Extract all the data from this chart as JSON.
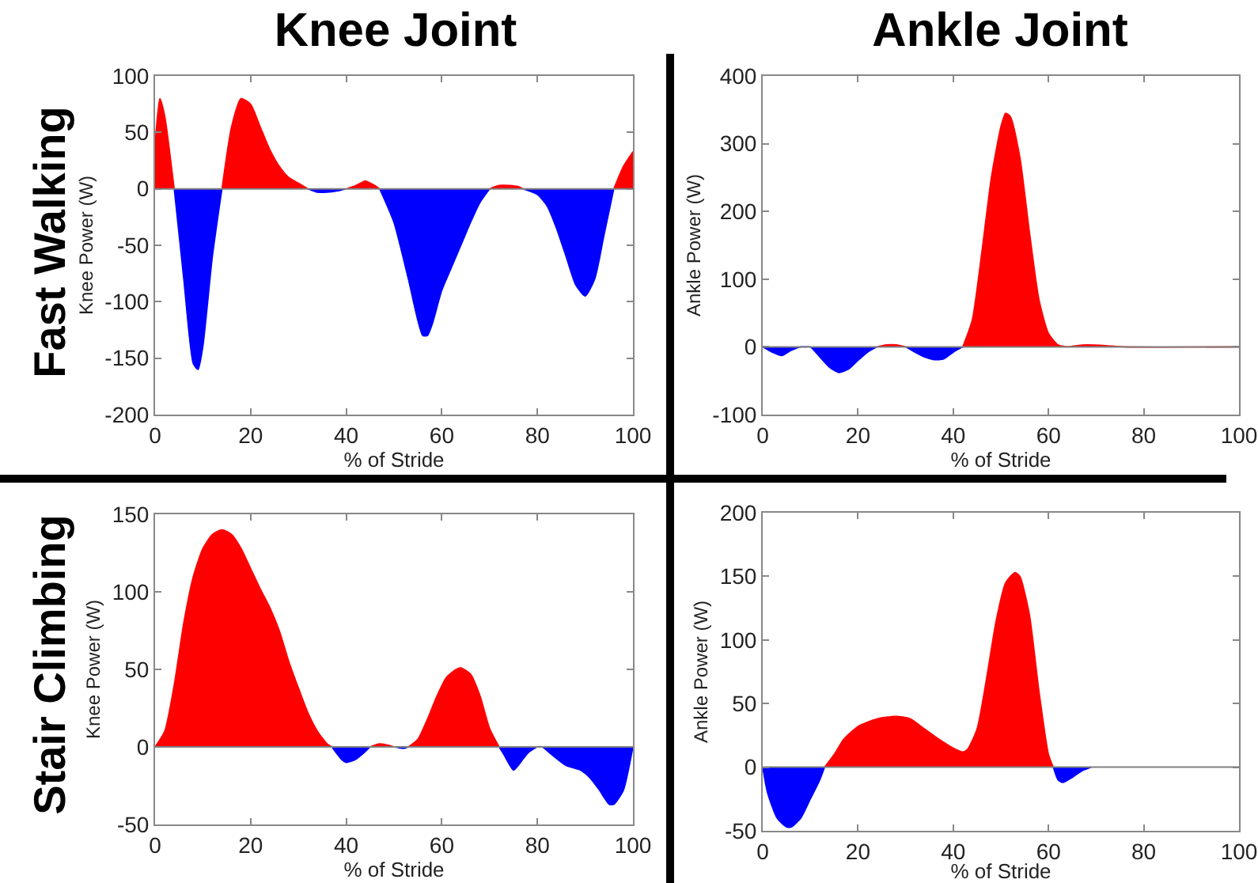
{
  "chart_data": [
    {
      "type": "area",
      "title": "Knee Joint",
      "annotations": [
        "Fast Walking"
      ],
      "xlabel": "% of Stride",
      "ylabel": "Knee Power (W)",
      "xlim": [
        0,
        100
      ],
      "xticks": [
        0,
        20,
        40,
        60,
        80,
        100
      ],
      "ylim": [
        -200,
        100
      ],
      "yticks": [
        -200,
        -150,
        -100,
        -50,
        0,
        50,
        100
      ],
      "grid": false,
      "ref_lines": [
        {
          "axis": "y",
          "value": 0,
          "color": "#808080"
        }
      ],
      "x": [
        0,
        1,
        2,
        4,
        6,
        8,
        9,
        10,
        12,
        14,
        16,
        18,
        20,
        22,
        24,
        26,
        28,
        30,
        32,
        34,
        36,
        38,
        40,
        42,
        44,
        46,
        47,
        50,
        53,
        56,
        57,
        58,
        60,
        62,
        64,
        66,
        68,
        70,
        72,
        74,
        76,
        77,
        80,
        82,
        84,
        86,
        88,
        90,
        92,
        94,
        96,
        98,
        100
      ],
      "series": [
        {
          "color": "#ff0000",
          "values": [
            40,
            80,
            65,
            0,
            null,
            null,
            null,
            null,
            null,
            0,
            55,
            80,
            75,
            55,
            35,
            20,
            10,
            5,
            0,
            null,
            null,
            null,
            0,
            3,
            7,
            3,
            0,
            null,
            null,
            null,
            null,
            null,
            null,
            null,
            null,
            null,
            null,
            0,
            3,
            3,
            2,
            0,
            null,
            null,
            null,
            null,
            null,
            null,
            null,
            null,
            0,
            20,
            33
          ]
        },
        {
          "color": "#0000ff",
          "values": [
            null,
            null,
            null,
            0,
            -80,
            -155,
            -160,
            -140,
            -60,
            0,
            null,
            null,
            null,
            null,
            null,
            null,
            null,
            null,
            0,
            -3,
            -3,
            -2,
            0,
            null,
            null,
            null,
            0,
            -30,
            -80,
            -130,
            -130,
            -120,
            -90,
            -70,
            -50,
            -30,
            -12,
            0,
            null,
            null,
            null,
            0,
            -5,
            -15,
            -35,
            -60,
            -85,
            -95,
            -80,
            -40,
            0,
            null,
            null
          ]
        }
      ]
    },
    {
      "type": "area",
      "title": "Ankle Joint",
      "xlabel": "% of Stride",
      "ylabel": "Ankle Power (W)",
      "xlim": [
        0,
        100
      ],
      "xticks": [
        0,
        20,
        40,
        60,
        80,
        100
      ],
      "ylim": [
        -100,
        400
      ],
      "yticks": [
        -100,
        0,
        100,
        200,
        300,
        400
      ],
      "grid": false,
      "ref_lines": [
        {
          "axis": "y",
          "value": 0,
          "color": "#808080"
        }
      ],
      "x": [
        0,
        2,
        4,
        6,
        8,
        9,
        10,
        12,
        14,
        16,
        18,
        20,
        22,
        24,
        26,
        28,
        30,
        32,
        34,
        36,
        38,
        40,
        42,
        44,
        46,
        48,
        50,
        51,
        52,
        54,
        56,
        58,
        60,
        62,
        64,
        66,
        68,
        72,
        76,
        100
      ],
      "series": [
        {
          "color": "#ff0000",
          "values": [
            0,
            null,
            null,
            null,
            null,
            null,
            null,
            null,
            null,
            null,
            null,
            null,
            null,
            0,
            3,
            3,
            0,
            null,
            null,
            null,
            null,
            null,
            0,
            40,
            140,
            250,
            325,
            345,
            340,
            280,
            170,
            70,
            20,
            3,
            0,
            2,
            3,
            2,
            0,
            0
          ]
        },
        {
          "color": "#0000ff",
          "values": [
            0,
            -8,
            -13,
            -5,
            0,
            0,
            0,
            -15,
            -30,
            -38,
            -33,
            -20,
            -8,
            0,
            null,
            null,
            0,
            -8,
            -15,
            -19,
            -18,
            -8,
            0,
            null,
            null,
            null,
            null,
            null,
            null,
            null,
            null,
            null,
            null,
            null,
            null,
            null,
            null,
            null,
            null,
            null
          ]
        }
      ]
    },
    {
      "type": "area",
      "annotations": [
        "Stair Climbing"
      ],
      "xlabel": "% of Stride",
      "ylabel": "Knee Power (W)",
      "xlim": [
        0,
        100
      ],
      "xticks": [
        0,
        20,
        40,
        60,
        80,
        100
      ],
      "ylim": [
        -50,
        150
      ],
      "yticks": [
        -50,
        0,
        50,
        100,
        150
      ],
      "grid": false,
      "ref_lines": [
        {
          "axis": "y",
          "value": 0,
          "color": "#808080"
        }
      ],
      "x": [
        0,
        2,
        4,
        6,
        8,
        10,
        12,
        14,
        16,
        18,
        20,
        22,
        24,
        26,
        28,
        30,
        32,
        34,
        36,
        37,
        39,
        40,
        42,
        44,
        45,
        47,
        49,
        50,
        52,
        53,
        55,
        57,
        59,
        61,
        63,
        64,
        66,
        68,
        70,
        72,
        73,
        75,
        76,
        78,
        80,
        81,
        83,
        86,
        89,
        91,
        93,
        95,
        96,
        98,
        100
      ],
      "series": [
        {
          "color": "#ff0000",
          "values": [
            0,
            10,
            40,
            80,
            110,
            128,
            137,
            140,
            137,
            128,
            115,
            102,
            90,
            75,
            55,
            38,
            22,
            10,
            2,
            0,
            null,
            null,
            null,
            null,
            0,
            2,
            1,
            0,
            null,
            0,
            5,
            18,
            33,
            45,
            50,
            51,
            47,
            33,
            12,
            0,
            null,
            null,
            null,
            null,
            0,
            0,
            null,
            null,
            null,
            null,
            null,
            null,
            null,
            null,
            null
          ]
        },
        {
          "color": "#0000ff",
          "values": [
            null,
            null,
            null,
            null,
            null,
            null,
            null,
            null,
            null,
            null,
            null,
            null,
            null,
            null,
            null,
            null,
            null,
            null,
            null,
            0,
            -8,
            -10,
            -8,
            -3,
            0,
            null,
            null,
            0,
            -1,
            0,
            null,
            null,
            null,
            null,
            null,
            null,
            null,
            null,
            null,
            0,
            -5,
            -15,
            -12,
            -4,
            0,
            0,
            -5,
            -12,
            -15,
            -20,
            -28,
            -37,
            -37,
            -28,
            0
          ]
        }
      ]
    },
    {
      "type": "area",
      "xlabel": "% of Stride",
      "ylabel": "Ankle Power (W)",
      "xlim": [
        0,
        100
      ],
      "xticks": [
        0,
        20,
        40,
        60,
        80,
        100
      ],
      "ylim": [
        -50,
        200
      ],
      "yticks": [
        -50,
        0,
        50,
        100,
        150,
        200
      ],
      "grid": false,
      "ref_lines": [
        {
          "axis": "y",
          "value": 0,
          "color": "#808080"
        }
      ],
      "x": [
        0,
        1,
        3,
        5,
        6,
        8,
        10,
        12,
        13,
        15,
        17,
        20,
        24,
        28,
        31,
        34,
        37,
        40,
        42,
        43,
        45,
        47,
        49,
        51,
        53,
        54,
        56,
        58,
        60,
        61,
        62,
        63,
        65,
        67,
        69
      ],
      "series": [
        {
          "color": "#ff0000",
          "values": [
            null,
            null,
            null,
            null,
            null,
            null,
            null,
            null,
            0,
            10,
            22,
            32,
            38,
            40,
            38,
            30,
            22,
            15,
            12,
            14,
            30,
            70,
            115,
            145,
            153,
            150,
            120,
            60,
            10,
            0,
            null,
            null,
            null,
            null,
            null
          ]
        },
        {
          "color": "#0000ff",
          "values": [
            0,
            -20,
            -40,
            -47,
            -47,
            -40,
            -25,
            -10,
            0,
            null,
            null,
            null,
            null,
            null,
            null,
            null,
            null,
            null,
            null,
            null,
            null,
            null,
            null,
            null,
            null,
            null,
            null,
            null,
            null,
            0,
            -10,
            -12,
            -8,
            -3,
            0
          ]
        }
      ]
    }
  ]
}
